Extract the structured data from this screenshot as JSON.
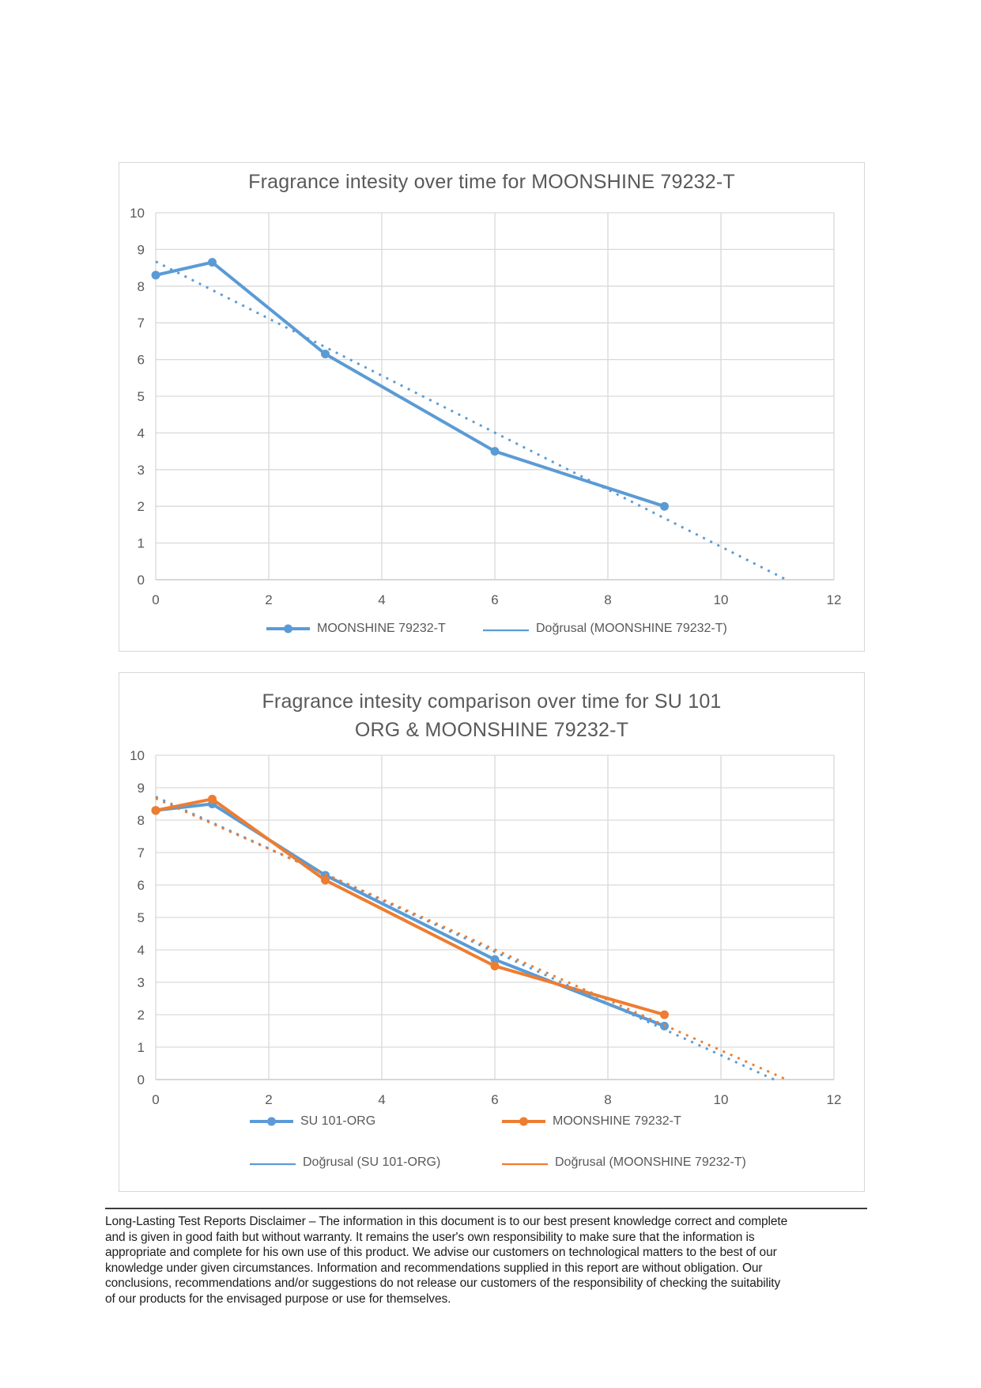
{
  "colors": {
    "blue": "#5B9BD5",
    "orange": "#ED7D31",
    "title_gray": "#595959",
    "axis_text": "#595959",
    "gridline": "#D9D9D9",
    "axis_line": "#BFBFBF",
    "chart_border": "#D7D7D7"
  },
  "chart_data": [
    {
      "type": "line",
      "title": "Fragrance intesity over time for MOONSHINE 79232-T",
      "title_lines": [
        "Fragrance intesity over time for MOONSHINE 79232-T"
      ],
      "x": [
        0,
        1,
        3,
        6,
        9
      ],
      "series": [
        {
          "name": "MOONSHINE 79232-T",
          "color": "blue",
          "values": [
            8.3,
            8.65,
            6.15,
            3.5,
            2.0
          ]
        }
      ],
      "trendlines": [
        {
          "name": "Doğrusal (MOONSHINE 79232-T)",
          "color": "blue",
          "intercept": 8.67,
          "slope": -0.777
        }
      ],
      "xlim": [
        0,
        12
      ],
      "ylim": [
        0,
        10
      ],
      "xticks": [
        0,
        2,
        4,
        6,
        8,
        10,
        12
      ],
      "yticks": [
        0,
        1,
        2,
        3,
        4,
        5,
        6,
        7,
        8,
        9,
        10
      ],
      "grid": true,
      "legend_position": "bottom",
      "legend_rows": [
        [
          {
            "label": "MOONSHINE 79232-T",
            "color": "blue",
            "kind": "series"
          },
          {
            "label": "Doğrusal (MOONSHINE 79232-T)",
            "color": "blue",
            "kind": "trend"
          }
        ]
      ]
    },
    {
      "type": "line",
      "title": "Fragrance intesity comparison over time for SU 101 ORG & MOONSHINE 79232-T",
      "title_lines": [
        "Fragrance intesity comparison over time for SU 101",
        "ORG & MOONSHINE 79232-T"
      ],
      "x": [
        0,
        1,
        3,
        6,
        9
      ],
      "series": [
        {
          "name": "SU 101-ORG",
          "color": "blue",
          "values": [
            8.3,
            8.5,
            6.3,
            3.7,
            1.65
          ]
        },
        {
          "name": "MOONSHINE 79232-T",
          "color": "orange",
          "values": [
            8.3,
            8.65,
            6.15,
            3.5,
            2.0
          ]
        }
      ],
      "trendlines": [
        {
          "name": "Doğrusal (SU 101-ORG)",
          "color": "blue",
          "intercept": 8.72,
          "slope": -0.797
        },
        {
          "name": "Doğrusal (MOONSHINE 79232-T)",
          "color": "orange",
          "intercept": 8.67,
          "slope": -0.777
        }
      ],
      "xlim": [
        0,
        12
      ],
      "ylim": [
        0,
        10
      ],
      "xticks": [
        0,
        2,
        4,
        6,
        8,
        10,
        12
      ],
      "yticks": [
        0,
        1,
        2,
        3,
        4,
        5,
        6,
        7,
        8,
        9,
        10
      ],
      "grid": true,
      "legend_position": "bottom",
      "legend_rows": [
        [
          {
            "label": "SU 101-ORG",
            "color": "blue",
            "kind": "series"
          },
          {
            "label": "MOONSHINE 79232-T",
            "color": "orange",
            "kind": "series"
          }
        ],
        [
          {
            "label": "Doğrusal (SU 101-ORG)",
            "color": "blue",
            "kind": "trend"
          },
          {
            "label": "Doğrusal (MOONSHINE 79232-T)",
            "color": "orange",
            "kind": "trend"
          }
        ]
      ]
    }
  ],
  "disclaimer": {
    "lines": [
      "Long-Lasting Test Reports Disclaimer – The information in this document is to our best present knowledge correct and complete",
      "and is given in good faith but without warranty. It remains the user's own responsibility to make sure that the information is",
      "appropriate and complete for his own use of this product. We advise our customers on technological matters to the best of our",
      "knowledge under given circumstances. Information and recommendations supplied in this report are without obligation. Our",
      "conclusions, recommendations and/or suggestions do not release our customers of the responsibility of checking the suitability",
      "of our products for the envisaged purpose or use for themselves."
    ]
  }
}
